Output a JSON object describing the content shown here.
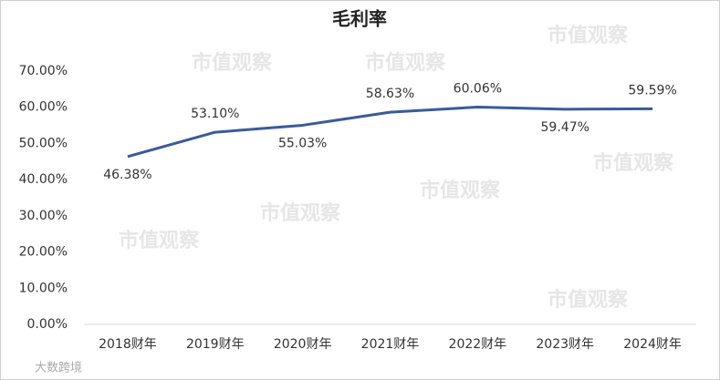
{
  "chart_data": {
    "type": "line",
    "title": "毛利率",
    "categories": [
      "2018财年",
      "2019财年",
      "2020财年",
      "2021财年",
      "2022财年",
      "2023财年",
      "2024财年"
    ],
    "series": [
      {
        "name": "毛利率",
        "color": "#3a5a9c",
        "values": [
          46.38,
          53.1,
          55.03,
          58.63,
          60.06,
          59.47,
          59.59
        ],
        "value_labels": [
          "46.38%",
          "53.10%",
          "55.03%",
          "58.63%",
          "60.06%",
          "59.47%",
          "59.59%"
        ]
      }
    ],
    "ylim": [
      0,
      70
    ],
    "yticks": [
      {
        "value": 0,
        "label": "0.00%"
      },
      {
        "value": 10,
        "label": "10.00%"
      },
      {
        "value": 20,
        "label": "20.00%"
      },
      {
        "value": 30,
        "label": "30.00%"
      },
      {
        "value": 40,
        "label": "40.00%"
      },
      {
        "value": 50,
        "label": "50.00%"
      },
      {
        "value": 60,
        "label": "60.00%"
      },
      {
        "value": 70,
        "label": "70.00%"
      }
    ],
    "grid": false,
    "watermark": "市值观察",
    "credit": "大数跨境"
  }
}
